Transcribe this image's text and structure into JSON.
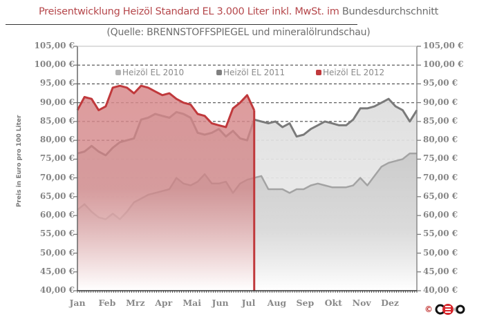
{
  "header": {
    "title_red": "Preisentwicklung Heizöl Standard EL 3.000 Liter inkl. MwSt. im",
    "title_gray": "Bundesdurchschnitt",
    "subtitle": "(Quelle: BRENNSTOFFSPIEGEL  und mineralölrundschau)"
  },
  "y_axis": {
    "title": "Preis in Euro pro 100 Liter",
    "ticks": [
      "105,00 €",
      "100,00 €",
      "95,00 €",
      "90,00 €",
      "85,00 €",
      "80,00 €",
      "75,00 €",
      "70,00 €",
      "65,00 €",
      "60,00 €",
      "55,00 €",
      "50,00 €",
      "45,00 €",
      "40,00 €"
    ]
  },
  "x_axis": {
    "ticks": [
      "Jan",
      "Feb",
      "Mrz",
      "Apr",
      "Mai",
      "Jun",
      "Jul",
      "Aug",
      "Sep",
      "Okt",
      "Nov",
      "Dez"
    ]
  },
  "legend": [
    {
      "label": "Heizöl EL 2010",
      "color": "#b3b3b3"
    },
    {
      "label": "Heizöl EL 2011",
      "color": "#7f7f7f"
    },
    {
      "label": "Heizöl EL 2012",
      "color": "#c0393c"
    }
  ],
  "footer": {
    "copyright": "©"
  },
  "chart_data": {
    "type": "area",
    "title": "Preisentwicklung Heizöl Standard EL 3.000 Liter inkl. MwSt. im Bundesdurchschnitt",
    "subtitle": "(Quelle: BRENNSTOFFSPIEGEL und mineralölrundschau)",
    "xlabel": "",
    "ylabel": "Preis in Euro pro 100 Liter",
    "ylim": [
      40,
      105
    ],
    "y_tick_step": 5,
    "grid": "horizontal dashed",
    "legend_position": "top inside",
    "x": [
      0,
      0.25,
      0.5,
      0.75,
      1,
      1.25,
      1.5,
      1.75,
      2,
      2.25,
      2.5,
      2.75,
      3,
      3.25,
      3.5,
      3.75,
      4,
      4.25,
      4.5,
      4.75,
      5,
      5.25,
      5.5,
      5.75,
      6,
      6.25,
      6.5,
      6.75,
      7,
      7.25,
      7.5,
      7.75,
      8,
      8.25,
      8.5,
      8.75,
      9,
      9.25,
      9.5,
      9.75,
      10,
      10.25,
      10.5,
      10.75,
      11,
      11.25,
      11.5,
      11.75,
      12
    ],
    "categories": [
      "Jan",
      "Feb",
      "Mrz",
      "Apr",
      "Mai",
      "Jun",
      "Jul",
      "Aug",
      "Sep",
      "Okt",
      "Nov",
      "Dez"
    ],
    "series": [
      {
        "name": "Heizöl EL 2010",
        "values": [
          61.5,
          63.0,
          61.0,
          59.5,
          59.0,
          60.5,
          59.0,
          61.0,
          63.5,
          64.5,
          65.5,
          66.0,
          66.5,
          67.0,
          70.0,
          68.5,
          68.0,
          69.0,
          71.0,
          68.5,
          68.5,
          69.0,
          66.0,
          68.5,
          69.5,
          70.0,
          70.5,
          67.0,
          67.0,
          67.0,
          66.0,
          67.0,
          67.0,
          68.0,
          68.5,
          68.0,
          67.5,
          67.5,
          67.5,
          68.0,
          70.0,
          68.0,
          70.5,
          73.0,
          74.0,
          74.5,
          75.0,
          76.5,
          76.5
        ]
      },
      {
        "name": "Heizöl EL 2011",
        "values": [
          76.5,
          77.0,
          78.5,
          77.0,
          76.0,
          78.0,
          79.5,
          80.0,
          80.5,
          85.5,
          86.0,
          87.0,
          86.5,
          86.0,
          87.5,
          87.0,
          86.0,
          82.0,
          81.5,
          82.0,
          83.0,
          81.0,
          82.5,
          80.5,
          80.0,
          85.5,
          85.0,
          84.5,
          85.0,
          83.5,
          84.5,
          81.0,
          81.5,
          83.0,
          84.0,
          85.0,
          84.5,
          84.0,
          84.0,
          85.5,
          88.5,
          88.5,
          89.0,
          90.0,
          91.0,
          89.0,
          88.0,
          85.0,
          88.0
        ]
      },
      {
        "name": "Heizöl EL 2012",
        "values": [
          88.0,
          91.5,
          91.0,
          88.0,
          89.0,
          94.0,
          94.5,
          94.0,
          92.5,
          94.5,
          94.0,
          93.0,
          92.0,
          92.5,
          91.0,
          90.0,
          89.5,
          87.0,
          86.5,
          84.5,
          84.0,
          83.5,
          88.5,
          90.0,
          92.0,
          88.0
        ]
      }
    ]
  }
}
